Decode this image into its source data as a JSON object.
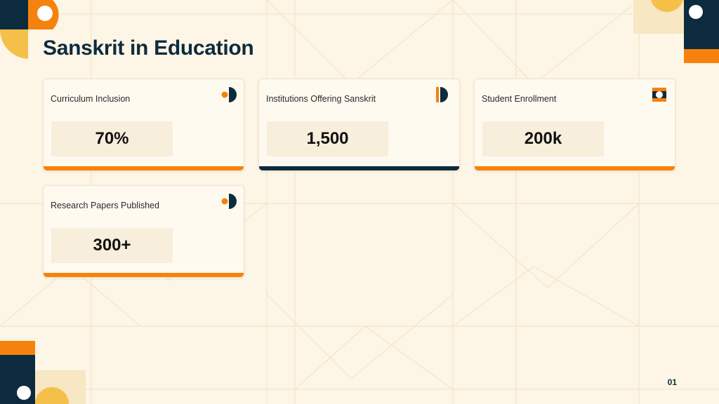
{
  "slide": {
    "title": "Sanskrit in Education",
    "page_number": "01"
  },
  "colors": {
    "accent_orange": "#f5820d",
    "navy": "#0d2b3e",
    "gold": "#f5c04a",
    "background": "#fdf6e6"
  },
  "cards": [
    {
      "label": "Curriculum Inclusion",
      "value": "70%",
      "icon": "half-circle-icon",
      "bar_color": "#f5820d"
    },
    {
      "label": "Institutions Offering Sanskrit",
      "value": "1,500",
      "icon": "d-shape-icon",
      "bar_color": "#0d2b3e"
    },
    {
      "label": "Student Enrollment",
      "value": "200k",
      "icon": "ring-square-icon",
      "bar_color": "#f5820d"
    },
    {
      "label": "Research Papers Published",
      "value": "300+",
      "icon": "half-circle-icon",
      "bar_color": "#f5820d"
    }
  ]
}
